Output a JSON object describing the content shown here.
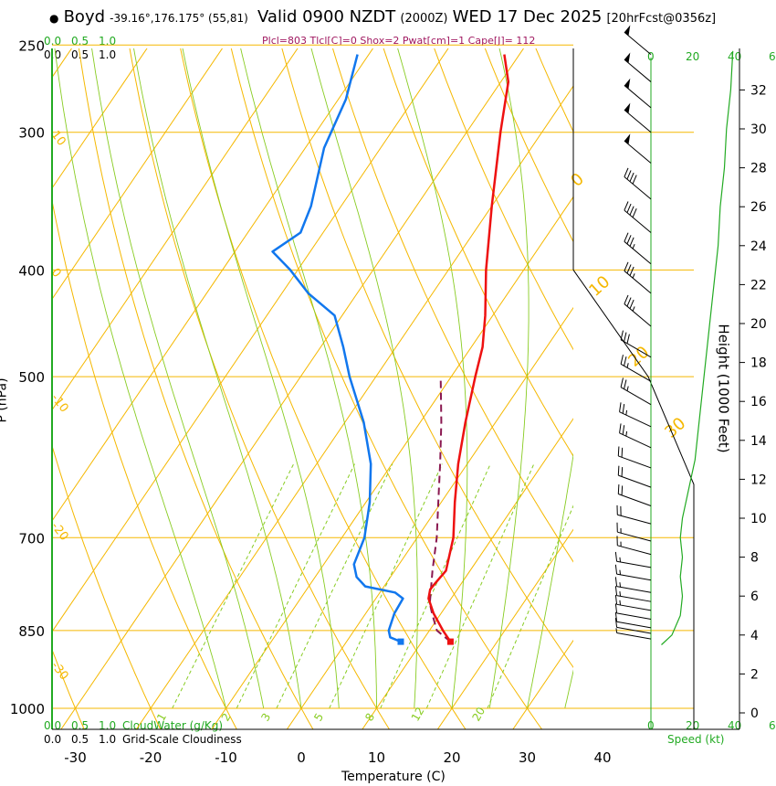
{
  "header": {
    "station": "Boyd",
    "location": "-39.16°,176.175° (55,81)",
    "valid": "Valid 0900 NZDT",
    "utc": "(2000Z)",
    "date": "WED 17 Dec 2025",
    "run": "[20hrFcst@0356z]",
    "params": "Plcl=803 Tlcl[C]=0 Shox=2 Pwat[cm]=1 Cape[J]= 112"
  },
  "legend": {
    "cloudwater_ticks": [
      "0.0",
      "0.5",
      "1.0"
    ],
    "cloudiness_ticks": [
      "0.0",
      "0.5",
      "1.0"
    ],
    "cloudwater_label": "CloudWater (g/Kg)",
    "cloudiness_label": "Grid-Scale Cloudiness",
    "speed_ticks": [
      "0",
      "20",
      "40",
      "6"
    ],
    "speed_label": "Speed (kt)"
  },
  "colors": {
    "isotherm": "#f5b800",
    "dry_adiabat": "#f5b800",
    "moist_adiabat": "#88cc22",
    "mixing_ratio": "#88cc22",
    "temperature": "#ee1111",
    "dewpoint": "#1177ee",
    "parcel": "#8a1850",
    "speed_profile": "#22aa22"
  },
  "chart_data": {
    "type": "skew-t",
    "xlabel": "Temperature (C)",
    "ylabel": "P (hPa)",
    "y2label": "Height (1000 Feet)",
    "x_ticks": [
      -30,
      -20,
      -10,
      0,
      10,
      20,
      30,
      40
    ],
    "pressure_ticks": [
      250,
      300,
      400,
      500,
      700,
      850,
      1000
    ],
    "height_ticks": [
      0,
      2,
      4,
      6,
      8,
      10,
      12,
      14,
      16,
      18,
      20,
      22,
      24,
      26,
      28,
      30,
      32
    ],
    "isotherm_labels": [
      {
        "t": 10,
        "p": 300,
        "text": "10"
      },
      {
        "t": 0,
        "p": 400,
        "text": "0"
      },
      {
        "t": -10,
        "p": 520,
        "text": "-10"
      },
      {
        "t": -20,
        "p": 680,
        "text": "-20"
      },
      {
        "t": -30,
        "p": 910,
        "text": "-30"
      }
    ],
    "theta_labels": [
      {
        "text": "0",
        "t": 36,
        "p": 345
      },
      {
        "text": "10",
        "t": 38,
        "p": 420
      },
      {
        "text": "20",
        "t": 40,
        "p": 495
      },
      {
        "text": "30",
        "t": 42,
        "p": 580
      }
    ],
    "mixing_ratio_labels": [
      "1",
      "2",
      "3",
      "5",
      "8",
      "12",
      "20"
    ],
    "temperature": [
      {
        "p": 870,
        "t": 13.8
      },
      {
        "p": 850,
        "t": 11.8
      },
      {
        "p": 820,
        "t": 9.0
      },
      {
        "p": 795,
        "t": 7.0
      },
      {
        "p": 780,
        "t": 6.4
      },
      {
        "p": 770,
        "t": 6.5
      },
      {
        "p": 750,
        "t": 6.8
      },
      {
        "p": 700,
        "t": 4.8
      },
      {
        "p": 650,
        "t": 1.8
      },
      {
        "p": 600,
        "t": -1.2
      },
      {
        "p": 550,
        "t": -4.0
      },
      {
        "p": 500,
        "t": -6.8
      },
      {
        "p": 470,
        "t": -8.5
      },
      {
        "p": 440,
        "t": -11.0
      },
      {
        "p": 400,
        "t": -15.0
      },
      {
        "p": 350,
        "t": -20.0
      },
      {
        "p": 300,
        "t": -25.5
      },
      {
        "p": 270,
        "t": -29.0
      },
      {
        "p": 255,
        "t": -32.0
      }
    ],
    "dewpoint": [
      {
        "p": 870,
        "t": 7.2
      },
      {
        "p": 862,
        "t": 5.4
      },
      {
        "p": 850,
        "t": 4.6
      },
      {
        "p": 820,
        "t": 3.8
      },
      {
        "p": 795,
        "t": 3.6
      },
      {
        "p": 785,
        "t": 2.0
      },
      {
        "p": 775,
        "t": -2.5
      },
      {
        "p": 760,
        "t": -4.5
      },
      {
        "p": 740,
        "t": -6.0
      },
      {
        "p": 700,
        "t": -7.0
      },
      {
        "p": 650,
        "t": -9.5
      },
      {
        "p": 600,
        "t": -12.8
      },
      {
        "p": 550,
        "t": -17.5
      },
      {
        "p": 500,
        "t": -23.5
      },
      {
        "p": 470,
        "t": -27.0
      },
      {
        "p": 440,
        "t": -31.0
      },
      {
        "p": 420,
        "t": -36.5
      },
      {
        "p": 400,
        "t": -41.0
      },
      {
        "p": 385,
        "t": -45.0
      },
      {
        "p": 370,
        "t": -43.0
      },
      {
        "p": 350,
        "t": -44.0
      },
      {
        "p": 310,
        "t": -47.5
      },
      {
        "p": 280,
        "t": -49.0
      },
      {
        "p": 255,
        "t": -51.5
      }
    ],
    "parcel": [
      {
        "p": 870,
        "t": 13.8
      },
      {
        "p": 850,
        "t": 11.0
      },
      {
        "p": 820,
        "t": 8.8
      },
      {
        "p": 803,
        "t": 7.6
      },
      {
        "p": 750,
        "t": 5.0
      },
      {
        "p": 700,
        "t": 2.6
      },
      {
        "p": 650,
        "t": -0.4
      },
      {
        "p": 600,
        "t": -3.6
      },
      {
        "p": 550,
        "t": -7.2
      },
      {
        "p": 500,
        "t": -11.4
      }
    ],
    "surface_temperature": {
      "p": 870,
      "t": 13.8
    },
    "surface_dewpoint": {
      "p": 870,
      "t": 7.2
    },
    "wind_speed_profile_kt": [
      {
        "h": 3.5,
        "s": 5
      },
      {
        "h": 4,
        "s": 10
      },
      {
        "h": 5,
        "s": 14
      },
      {
        "h": 6,
        "s": 15
      },
      {
        "h": 7,
        "s": 14
      },
      {
        "h": 8,
        "s": 15
      },
      {
        "h": 9,
        "s": 14
      },
      {
        "h": 10,
        "s": 15
      },
      {
        "h": 11,
        "s": 17
      },
      {
        "h": 12,
        "s": 19
      },
      {
        "h": 13,
        "s": 21
      },
      {
        "h": 14,
        "s": 22
      },
      {
        "h": 16,
        "s": 24
      },
      {
        "h": 18,
        "s": 26
      },
      {
        "h": 20,
        "s": 28
      },
      {
        "h": 22,
        "s": 30
      },
      {
        "h": 24,
        "s": 32
      },
      {
        "h": 26,
        "s": 33
      },
      {
        "h": 28,
        "s": 35
      },
      {
        "h": 30,
        "s": 36
      },
      {
        "h": 32,
        "s": 38
      },
      {
        "h": 34,
        "s": 39
      }
    ],
    "wind_barbs": [
      {
        "p": 255,
        "dir": 310,
        "spd": 50
      },
      {
        "p": 270,
        "dir": 310,
        "spd": 50
      },
      {
        "p": 285,
        "dir": 310,
        "spd": 50
      },
      {
        "p": 300,
        "dir": 310,
        "spd": 50
      },
      {
        "p": 320,
        "dir": 310,
        "spd": 50
      },
      {
        "p": 345,
        "dir": 310,
        "spd": 40
      },
      {
        "p": 370,
        "dir": 310,
        "spd": 40
      },
      {
        "p": 395,
        "dir": 310,
        "spd": 35
      },
      {
        "p": 420,
        "dir": 310,
        "spd": 35
      },
      {
        "p": 450,
        "dir": 310,
        "spd": 35
      },
      {
        "p": 480,
        "dir": 300,
        "spd": 30
      },
      {
        "p": 505,
        "dir": 300,
        "spd": 25
      },
      {
        "p": 530,
        "dir": 300,
        "spd": 25
      },
      {
        "p": 555,
        "dir": 295,
        "spd": 25
      },
      {
        "p": 580,
        "dir": 295,
        "spd": 25
      },
      {
        "p": 605,
        "dir": 290,
        "spd": 20
      },
      {
        "p": 630,
        "dir": 290,
        "spd": 20
      },
      {
        "p": 655,
        "dir": 290,
        "spd": 20
      },
      {
        "p": 680,
        "dir": 285,
        "spd": 20
      },
      {
        "p": 705,
        "dir": 285,
        "spd": 15
      },
      {
        "p": 725,
        "dir": 285,
        "spd": 15
      },
      {
        "p": 745,
        "dir": 280,
        "spd": 15
      },
      {
        "p": 765,
        "dir": 280,
        "spd": 15
      },
      {
        "p": 785,
        "dir": 280,
        "spd": 15
      },
      {
        "p": 800,
        "dir": 280,
        "spd": 15
      },
      {
        "p": 815,
        "dir": 280,
        "spd": 15
      },
      {
        "p": 830,
        "dir": 280,
        "spd": 10
      },
      {
        "p": 845,
        "dir": 280,
        "spd": 10
      },
      {
        "p": 855,
        "dir": 280,
        "spd": 10
      },
      {
        "p": 865,
        "dir": 280,
        "spd": 5
      }
    ]
  }
}
